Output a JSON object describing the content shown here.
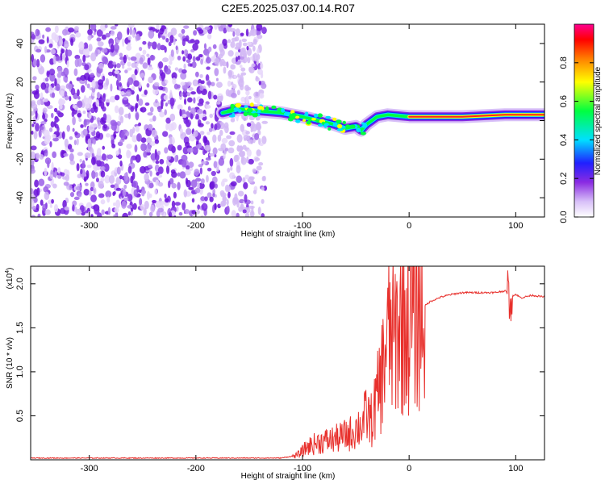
{
  "title": "C2E5.2025.037.00.14.R07",
  "chart_data": [
    {
      "type": "heatmap",
      "xlabel": "Height of straight line (km)",
      "ylabel": "Frequency (Hz)",
      "xlim": [
        -355,
        127
      ],
      "ylim": [
        -50,
        50
      ],
      "xticks": [
        -300,
        -200,
        -100,
        0,
        100
      ],
      "yticks": [
        -40,
        -20,
        0,
        20,
        40
      ],
      "colorbar": {
        "label": "Normalized spectral amplitude",
        "range": [
          0,
          1
        ],
        "ticks": [
          0.0,
          0.2,
          0.4,
          0.6,
          0.8
        ],
        "colors": [
          "#ffffff",
          "#c8a8f0",
          "#7a1fe0",
          "#2030ff",
          "#00e0ff",
          "#00ff40",
          "#ffff00",
          "#ff8000",
          "#ff0000",
          "#ff0090"
        ]
      },
      "ridge": {
        "x": [
          -175,
          -160,
          -140,
          -120,
          -100,
          -85,
          -70,
          -60,
          -50,
          -45,
          -40,
          -30,
          -20,
          0,
          50,
          90,
          110,
          127
        ],
        "y": [
          4,
          6,
          5,
          4,
          2,
          0,
          -2,
          -4,
          -3,
          -5,
          -2,
          2,
          3,
          2,
          2,
          3,
          3,
          3
        ]
      },
      "noise_region_x": [
        -355,
        -135
      ]
    },
    {
      "type": "line",
      "xlabel": "Height of straight line (km)",
      "ylabel": "SNR (10 * v/v)",
      "y_multiplier": "(x10",
      "y_multiplier_exp": "4",
      "xlim": [
        -355,
        127
      ],
      "ylim": [
        0,
        2.2
      ],
      "xticks": [
        -300,
        -200,
        -100,
        0,
        100
      ],
      "yticks": [
        0.5,
        1.0,
        1.5,
        2.0
      ],
      "series": [
        {
          "color": "#e8302c",
          "x": [
            -355,
            -300,
            -200,
            -120,
            -105,
            -95,
            -85,
            -75,
            -65,
            -55,
            -50,
            -45,
            -40,
            -35,
            -30,
            -25,
            -22,
            -18,
            -15,
            -10,
            -5,
            0,
            5,
            10,
            20,
            30,
            40,
            50,
            60,
            70,
            80,
            90,
            95,
            100,
            105,
            115,
            127
          ],
          "y": [
            0.02,
            0.02,
            0.02,
            0.02,
            0.05,
            0.15,
            0.2,
            0.22,
            0.25,
            0.3,
            0.35,
            0.4,
            0.5,
            0.45,
            0.7,
            1.0,
            1.3,
            1.45,
            1.35,
            1.5,
            1.6,
            1.55,
            1.6,
            1.7,
            1.8,
            1.85,
            1.88,
            1.9,
            1.9,
            1.9,
            1.9,
            1.92,
            1.85,
            1.88,
            1.84,
            1.87,
            1.85
          ]
        }
      ]
    }
  ]
}
